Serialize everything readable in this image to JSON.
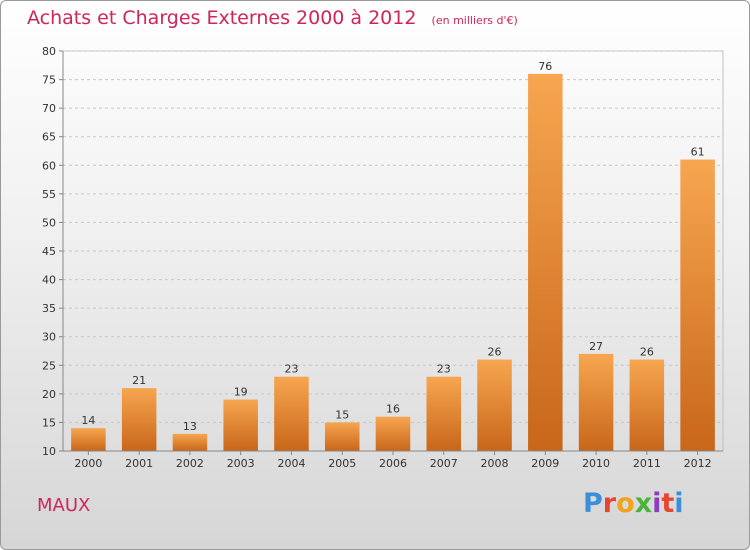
{
  "header": {
    "title": "Achats et Charges Externes 2000 à 2012",
    "subtitle": "(en milliers d'€)"
  },
  "footer": {
    "place": "MAUX",
    "brand": "Proxiti",
    "brand_colors": [
      "#3b8fd8",
      "#e6452f",
      "#f2a31b",
      "#4bb33a",
      "#8a3fc0",
      "#e6452f",
      "#3b8fd8"
    ]
  },
  "chart_data": {
    "type": "bar",
    "title": "Achats et Charges Externes 2000 à 2012",
    "subtitle": "(en milliers d'€)",
    "categories": [
      "2000",
      "2001",
      "2002",
      "2003",
      "2004",
      "2005",
      "2006",
      "2007",
      "2008",
      "2009",
      "2010",
      "2011",
      "2012"
    ],
    "values": [
      14,
      21,
      13,
      19,
      23,
      15,
      16,
      23,
      26,
      76,
      27,
      26,
      61
    ],
    "ylim": [
      10,
      80
    ],
    "yticks": [
      10,
      15,
      20,
      25,
      30,
      35,
      40,
      45,
      50,
      55,
      60,
      65,
      70,
      75,
      80
    ],
    "grid": true,
    "bar_color_top": "#f7a650",
    "bar_color_bottom": "#c8661a"
  }
}
